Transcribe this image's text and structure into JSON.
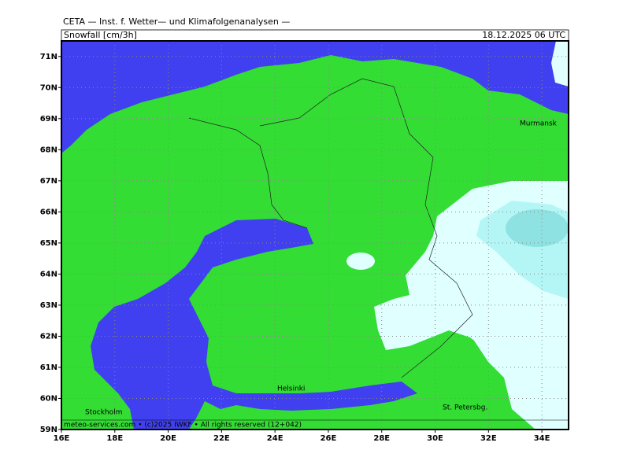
{
  "header": "CETA — Inst. f. Wetter— und Klimafolgenanalysen —",
  "map": {
    "title": "Snowfall [cm/3h]",
    "valid_time": "18.12.2025 06 UTC",
    "credit": "meteo-services.com • (c)2025 IWKF • All rights reserved (12+042)",
    "places": [
      "Murmansk",
      "Helsinki",
      "Stockholm",
      "St. Petersbg."
    ],
    "xlim": [
      16,
      35
    ],
    "ylim": [
      59,
      71.5
    ],
    "xticks": [
      {
        "value": 16,
        "label": "16E"
      },
      {
        "value": 18,
        "label": "18E"
      },
      {
        "value": 20,
        "label": "20E"
      },
      {
        "value": 22,
        "label": "22E"
      },
      {
        "value": 24,
        "label": "24E"
      },
      {
        "value": 26,
        "label": "26E"
      },
      {
        "value": 28,
        "label": "28E"
      },
      {
        "value": 30,
        "label": "30E"
      },
      {
        "value": 32,
        "label": "32E"
      },
      {
        "value": 34,
        "label": "34E"
      }
    ],
    "yticks": [
      {
        "value": 59,
        "label": "59N"
      },
      {
        "value": 60,
        "label": "60N"
      },
      {
        "value": 61,
        "label": "61N"
      },
      {
        "value": 62,
        "label": "62N"
      },
      {
        "value": 63,
        "label": "63N"
      },
      {
        "value": 64,
        "label": "64N"
      },
      {
        "value": 65,
        "label": "65N"
      },
      {
        "value": 66,
        "label": "66N"
      },
      {
        "value": 67,
        "label": "67N"
      },
      {
        "value": 68,
        "label": "68N"
      },
      {
        "value": 69,
        "label": "69N"
      },
      {
        "value": 70,
        "label": "70N"
      },
      {
        "value": 71,
        "label": "71N"
      }
    ],
    "grid": true
  }
}
